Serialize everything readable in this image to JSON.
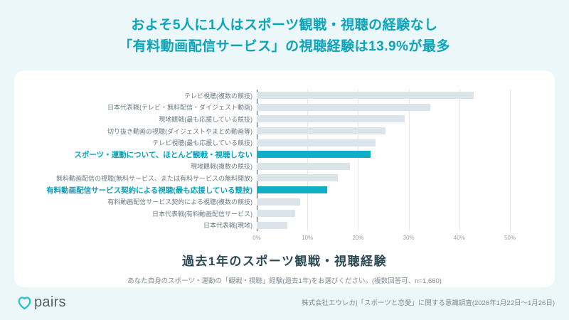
{
  "page": {
    "background_color": "#ebf7f9",
    "accent_color": "#0ba4ba"
  },
  "header": {
    "title_line1": "およそ5人に1人はスポーツ観戦・視聴の経験なし",
    "title_line2": "「有料動画配信サービス」の視聴経験は13.9%が最多"
  },
  "chart_data": {
    "type": "bar",
    "orientation": "horizontal",
    "title": "過去1年のスポーツ観戦・視聴経験",
    "note": "あなた自身のスポーツ・運動の「観戦・視聴」経験(過去1年)をお選びください。(複数回答可、n=1,660)",
    "unit": "%",
    "xlim": [
      0,
      58
    ],
    "x_ticks": [
      "0%",
      "10%",
      "20%",
      "30%",
      "40%",
      "50%"
    ],
    "x_tick_values": [
      0,
      10,
      20,
      30,
      40,
      50
    ],
    "grid": true,
    "categories": [
      "テレビ視聴(複数の競技)",
      "日本代表戦(テレビ・無料配信・ダイジェスト動画)",
      "現地観戦(最も応援している競技)",
      "切り抜き動画の視聴(ダイジェストやまとめ動画等)",
      "テレビ視聴(最も応援している競技)",
      "スポーツ・運動について、ほとんど観戦・視聴しない",
      "現地観戦(複数の競技)",
      "無料動画配信の視聴(無料サービス、または有料サービスの無料開放)",
      "有料動画配信サービス契約による視聴(最も応援している競技)",
      "有料動画配信サービス契約による視聴(複数の競技)",
      "日本代表戦(有料動画配信サービス)",
      "日本代表戦(現地)"
    ],
    "values": [
      42.9,
      34.2,
      29.2,
      25.4,
      23.5,
      22.5,
      18.4,
      16.0,
      13.9,
      8.6,
      7.6,
      6.1
    ],
    "highlighted": [
      false,
      false,
      false,
      false,
      false,
      true,
      false,
      false,
      true,
      false,
      false,
      false
    ],
    "bar_color": "#dbe4e8",
    "highlight_color": "#0fb0c5"
  },
  "footer": {
    "logo_text": "pairs",
    "logo_icon": "pairs-heart-icon",
    "source": "株式会社エウレカ|「スポーツと恋愛」に関する意識調査(2026年1月22日〜1月26日)"
  }
}
